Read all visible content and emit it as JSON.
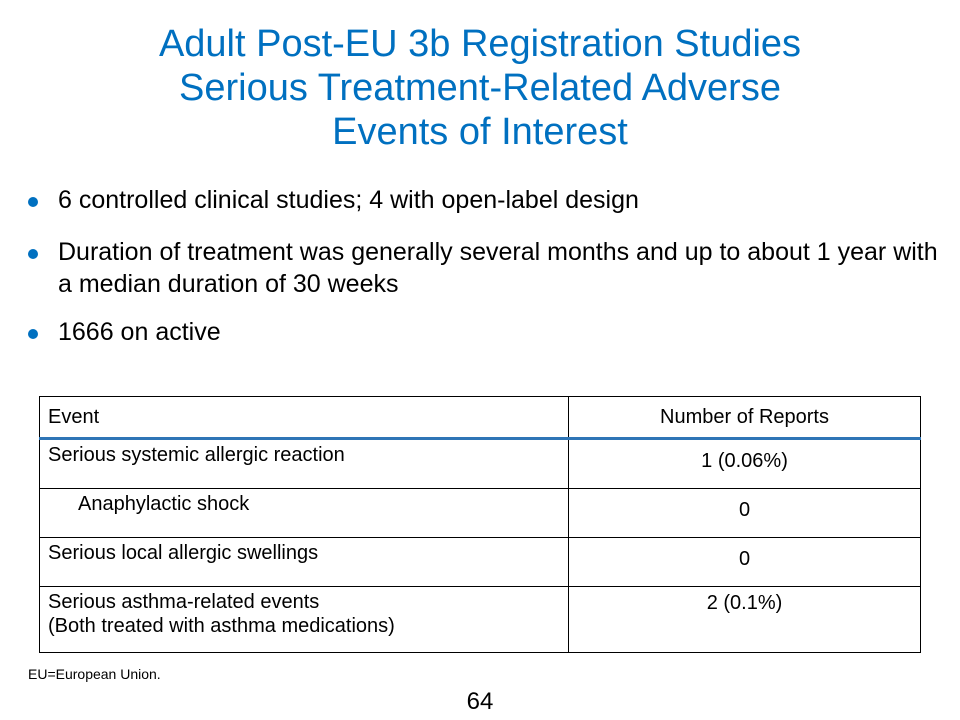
{
  "title": {
    "line1": "Adult Post-EU 3b Registration Studies",
    "line2": "Serious Treatment-Related Adverse",
    "line3": "Events of Interest"
  },
  "bullets": [
    {
      "text": "6 controlled clinical studies; 4 with open-label design"
    },
    {
      "text": "Duration of treatment was generally several months and up to about 1 year with a median duration of 30 weeks"
    },
    {
      "text": "1666 on active"
    }
  ],
  "table": {
    "headers": {
      "event": "Event",
      "reports": "Number of Reports"
    },
    "rows": [
      {
        "event": "Serious systemic allergic reaction",
        "reports": "1 (0.06%)"
      },
      {
        "event": "Anaphylactic shock",
        "reports": "0"
      },
      {
        "event": "Serious local allergic swellings",
        "reports": "0"
      },
      {
        "event_line1": "Serious asthma-related events",
        "event_line2": "(Both treated with asthma medications)",
        "reports": "2 (0.1%)"
      }
    ]
  },
  "footnote": "EU=European Union.",
  "page_number": "64",
  "colors": {
    "title": "#0070c0",
    "bullet": "#0070c0",
    "header_rule": "#2e75b6"
  }
}
